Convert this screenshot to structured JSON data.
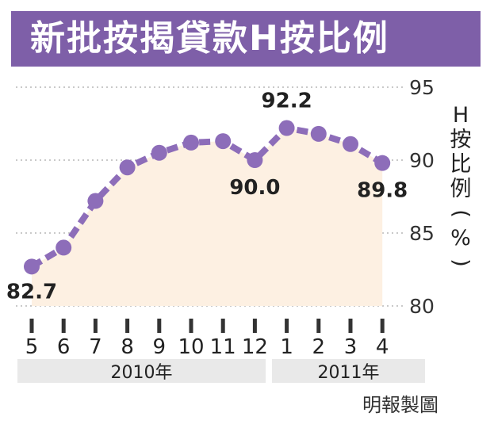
{
  "title": "新批按揭貸款H按比例",
  "credit": "明報製圖",
  "colors": {
    "title_bg": "#7e5fa8",
    "line": "#8d6db9",
    "area": "#fdf0e2",
    "grid": "#c9c9c9",
    "year_band": "#e9e9e9"
  },
  "chart_data": {
    "type": "line",
    "title": "新批按揭貸款H按比例",
    "ylabel": "H按比例(%)",
    "ylim": [
      80,
      95
    ],
    "yticks": [
      95,
      90,
      85,
      80
    ],
    "grid": true,
    "x": [
      "5",
      "6",
      "7",
      "8",
      "9",
      "10",
      "11",
      "12",
      "1",
      "2",
      "3",
      "4"
    ],
    "year_groups": [
      {
        "label": "2010年",
        "months": [
          "5",
          "6",
          "7",
          "8",
          "9",
          "10",
          "11",
          "12"
        ]
      },
      {
        "label": "2011年",
        "months": [
          "1",
          "2",
          "3",
          "4"
        ]
      }
    ],
    "series": [
      {
        "values": [
          82.7,
          84.0,
          87.2,
          89.5,
          90.5,
          91.2,
          91.3,
          90.0,
          92.2,
          91.8,
          91.1,
          89.8
        ]
      }
    ],
    "annotations": [
      {
        "index": 0,
        "text": "82.7"
      },
      {
        "index": 7,
        "text": "90.0"
      },
      {
        "index": 8,
        "text": "92.2"
      },
      {
        "index": 11,
        "text": "89.8"
      }
    ]
  }
}
